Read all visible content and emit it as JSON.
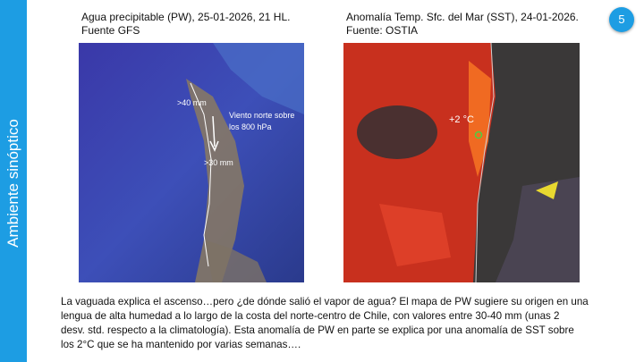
{
  "sidebar": {
    "title": "Ambiente sinóptico"
  },
  "page_number": "5",
  "left_panel": {
    "title_lines": [
      "Agua precipitable (PW), 25-01-2026,  21 HL.",
      "Fuente GFS"
    ],
    "annotations": [
      ">40 mm",
      "Viento norte sobre",
      "los 800 hPa",
      ">30 mm"
    ]
  },
  "right_panel": {
    "title_lines": [
      "Anomalía Temp. Sfc. del Mar (SST), 24-01-2026.",
      "Fuente: OSTIA"
    ],
    "annotations": [
      "+2 °C"
    ]
  },
  "body": {
    "lines": [
      "La vaguada explica el ascenso…pero ¿de dónde salió el vapor de agua? El mapa de PW sugiere su origen en una",
      "lengua de alta humedad a lo largo de la costa del norte-centro de Chile, con valores entre 30-40 mm (unas 2",
      "desv. std. respecto a la climatología). Esta anomalía de PW en parte se explica por una anomalía de SST sobre",
      "los 2°C que se ha mantenido por varias semanas…."
    ]
  }
}
